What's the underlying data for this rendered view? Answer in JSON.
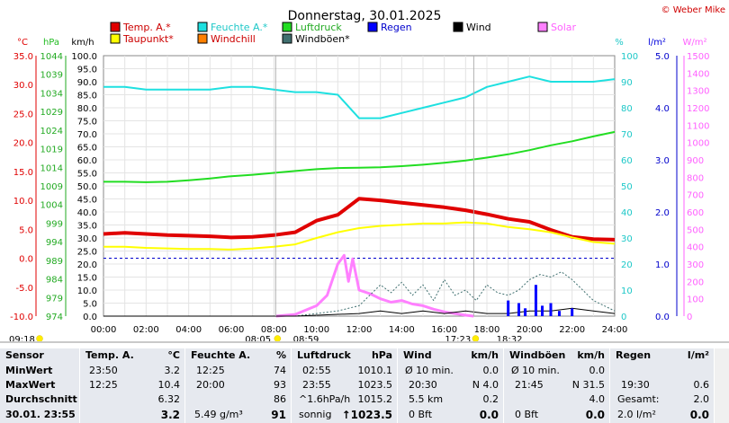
{
  "header": {
    "title": "Donnerstag, 30.01.2025",
    "copyright": "© Weber Mike"
  },
  "units": {
    "celsius": "°C",
    "hpa": "hPa",
    "kmh": "km/h",
    "percent": "%",
    "lm2": "l/m²",
    "wm2": "W/m²"
  },
  "legend": [
    {
      "label": "Temp. A.*",
      "color": "#e00000"
    },
    {
      "label": "Feuchte A.*",
      "color": "#1ee0e0"
    },
    {
      "label": "Luftdruck",
      "color": "#22dd22"
    },
    {
      "label": "Regen",
      "color": "#0000ff"
    },
    {
      "label": "Wind",
      "color": "#000000"
    },
    {
      "label": "Solar",
      "color": "#ff80ff"
    },
    {
      "label": "Taupunkt*",
      "color": "#ffff00"
    },
    {
      "label": "Windchill",
      "color": "#ff8000"
    },
    {
      "label": "Windböen*",
      "color": "#407070"
    }
  ],
  "chart_data": {
    "type": "line",
    "x_label_ticks": [
      "00:00",
      "02:00",
      "04:00",
      "06:00",
      "08:00",
      "10:00",
      "12:00",
      "14:00",
      "16:00",
      "18:00",
      "20:00",
      "22:00",
      "24:00"
    ],
    "axes": {
      "temp_c": {
        "ticks": [
          "35.0",
          "30.0",
          "25.0",
          "20.0",
          "15.0",
          "10.0",
          "5.0",
          "0.0",
          "-5.0",
          "-10.0"
        ],
        "range": [
          -10,
          35
        ]
      },
      "pressure_hpa": {
        "ticks": [
          "1044",
          "1039",
          "1034",
          "1029",
          "1024",
          "1019",
          "1014",
          "1009",
          "1004",
          "999",
          "994",
          "989",
          "984",
          "979",
          "974"
        ],
        "range": [
          974,
          1044
        ]
      },
      "wind_kmh": {
        "ticks": [
          "100.0",
          "95.0",
          "90.0",
          "85.0",
          "80.0",
          "75.0",
          "70.0",
          "65.0",
          "60.0",
          "55.0",
          "50.0",
          "45.0",
          "40.0",
          "35.0",
          "30.0",
          "25.0",
          "20.0",
          "15.0",
          "10.0",
          "5.0",
          "0.0"
        ],
        "range": [
          0,
          100
        ]
      },
      "humidity_pct": {
        "ticks": [
          "100",
          "90",
          "80",
          "70",
          "60",
          "50",
          "40",
          "30",
          "20",
          "10",
          "0"
        ],
        "range": [
          0,
          100
        ]
      },
      "rain_lm2": {
        "ticks": [
          "5.0",
          "4.0",
          "3.0",
          "2.0",
          "1.0",
          "0.0"
        ],
        "range": [
          0,
          5
        ]
      },
      "solar_wm2": {
        "ticks": [
          "1500",
          "1400",
          "1300",
          "1200",
          "1100",
          "1000",
          "900",
          "800",
          "700",
          "600",
          "500",
          "400",
          "300",
          "200",
          "100",
          "0"
        ],
        "range": [
          0,
          1500
        ]
      }
    },
    "series": [
      {
        "name": "Temp. A.*",
        "color": "#e00000",
        "x": [
          0,
          1,
          2,
          3,
          4,
          5,
          6,
          7,
          8,
          9,
          10,
          11,
          12,
          13,
          14,
          15,
          16,
          17,
          18,
          19,
          20,
          21,
          22,
          23,
          24
        ],
        "y": [
          4.2,
          4.4,
          4.2,
          4.0,
          3.9,
          3.8,
          3.6,
          3.7,
          4.0,
          4.5,
          6.5,
          7.5,
          10.3,
          10.0,
          9.6,
          9.2,
          8.8,
          8.3,
          7.6,
          6.8,
          6.3,
          4.9,
          3.7,
          3.3,
          3.2
        ]
      },
      {
        "name": "Taupunkt*",
        "color": "#ffff00",
        "x": [
          0,
          1,
          2,
          3,
          4,
          5,
          6,
          7,
          8,
          9,
          10,
          11,
          12,
          13,
          14,
          15,
          16,
          17,
          18,
          19,
          20,
          21,
          22,
          23,
          24
        ],
        "y": [
          2.0,
          2.0,
          1.8,
          1.7,
          1.6,
          1.6,
          1.5,
          1.7,
          2.0,
          2.4,
          3.5,
          4.5,
          5.2,
          5.6,
          5.8,
          6.0,
          6.0,
          6.2,
          6.0,
          5.4,
          5.0,
          4.5,
          3.6,
          2.8,
          2.5
        ]
      },
      {
        "name": "Feuchte A.*",
        "color": "#1ee0e0",
        "x": [
          0,
          1,
          2,
          3,
          4,
          5,
          6,
          7,
          8,
          9,
          10,
          11,
          12,
          13,
          14,
          15,
          16,
          17,
          18,
          19,
          20,
          21,
          22,
          23,
          24
        ],
        "y": [
          88,
          88,
          87,
          87,
          87,
          87,
          88,
          88,
          87,
          86,
          86,
          85,
          76,
          76,
          78,
          80,
          82,
          84,
          88,
          90,
          92,
          90,
          90,
          90,
          91
        ]
      },
      {
        "name": "Luftdruck",
        "color": "#22dd22",
        "x": [
          0,
          1,
          2,
          3,
          4,
          5,
          6,
          7,
          8,
          9,
          10,
          11,
          12,
          13,
          14,
          15,
          16,
          17,
          18,
          19,
          20,
          21,
          22,
          23,
          24
        ],
        "y": [
          1010.1,
          1010.1,
          1010.0,
          1010.1,
          1010.5,
          1011.0,
          1011.6,
          1012.0,
          1012.5,
          1013.0,
          1013.5,
          1013.8,
          1013.9,
          1014.0,
          1014.3,
          1014.7,
          1015.2,
          1015.8,
          1016.6,
          1017.5,
          1018.6,
          1019.9,
          1021.0,
          1022.3,
          1023.5
        ]
      },
      {
        "name": "Solar",
        "color": "#ff80ff",
        "x": [
          8.1,
          9,
          10,
          10.5,
          11,
          11.3,
          11.5,
          11.7,
          12,
          12.5,
          13,
          13.5,
          14,
          14.5,
          15,
          15.5,
          16,
          16.5,
          17,
          17.38
        ],
        "y": [
          0,
          10,
          60,
          120,
          300,
          350,
          200,
          330,
          150,
          130,
          100,
          80,
          90,
          70,
          60,
          40,
          25,
          15,
          5,
          0
        ]
      },
      {
        "name": "Windböen*",
        "color": "#407070",
        "x": [
          0,
          9,
          10,
          11,
          12,
          12.5,
          13,
          13.5,
          14,
          14.5,
          15,
          15.5,
          16,
          16.5,
          17,
          17.5,
          18,
          18.5,
          19,
          19.5,
          20,
          20.5,
          21,
          21.5,
          22,
          22.5,
          23,
          24
        ],
        "y": [
          0,
          0,
          1,
          2,
          4,
          8,
          12,
          9,
          13,
          8,
          12,
          6,
          14,
          8,
          10,
          6,
          12,
          9,
          8,
          10,
          14,
          16,
          15,
          17,
          14,
          10,
          6,
          2
        ]
      },
      {
        "name": "Wind",
        "color": "#000000",
        "x": [
          0,
          9,
          12,
          13,
          14,
          15,
          16,
          17,
          18,
          19,
          20,
          21,
          22,
          23,
          24
        ],
        "y": [
          0,
          0,
          1,
          2,
          1,
          2,
          1,
          2,
          1,
          1,
          2,
          2,
          3,
          2,
          1
        ]
      },
      {
        "name": "Regen",
        "color": "#0000ff",
        "x": [
          19,
          19.5,
          19.8,
          20.3,
          20.6,
          21,
          21.4,
          22
        ],
        "y": [
          0.3,
          0.25,
          0.15,
          0.6,
          0.2,
          0.25,
          0.1,
          0.15
        ]
      }
    ],
    "sun_events": {
      "sunrise": "08:05",
      "sunrise2": "08:59",
      "sunset": "17:23",
      "sunset2": "18:32",
      "left_marker": "09:18"
    }
  },
  "table": {
    "columns": [
      {
        "header": "Sensor",
        "unit": ""
      },
      {
        "header": "Temp. A.",
        "unit": "°C"
      },
      {
        "header": "Feuchte A.",
        "unit": "%"
      },
      {
        "header": "Luftdruck",
        "unit": "hPa"
      },
      {
        "header": "Wind",
        "unit": "km/h"
      },
      {
        "header": "Windböen",
        "unit": "km/h"
      },
      {
        "header": "Regen",
        "unit": "l/m²"
      }
    ],
    "rows": {
      "min": {
        "label": "MinWert",
        "temp_time": "23:50",
        "temp_val": "3.2",
        "hum_time": "12:25",
        "hum_val": "74",
        "pres_time": "02:55",
        "pres_val": "1010.1",
        "wind_label": "Ø 10 min.",
        "wind_val": "0.0",
        "gust_label": "Ø 10 min.",
        "gust_val": "0.0",
        "rain_label": "",
        "rain_val": ""
      },
      "max": {
        "label": "MaxWert",
        "temp_time": "12:25",
        "temp_val": "10.4",
        "hum_time": "20:00",
        "hum_val": "93",
        "pres_time": "23:55",
        "pres_val": "1023.5",
        "wind_label": "20:30",
        "wind_val": "N 4.0",
        "gust_label": "21:45",
        "gust_val": "N 31.5",
        "rain_label": "19:30",
        "rain_val": "0.6"
      },
      "avg": {
        "label": "Durchschnitt",
        "temp_val": "6.32",
        "hum_val": "86",
        "pres_label": "^1.6hPa/h",
        "pres_val": "1015.2",
        "wind_label": "5.5 km",
        "wind_val": "0.2",
        "gust_val": "4.0",
        "rain_label": "Gesamt:",
        "rain_val": "2.0"
      },
      "current": {
        "label": "30.01. 23:55",
        "temp_val": "3.2",
        "hum_label": "5.49 g/m³",
        "hum_val": "91",
        "pres_label": "sonnig",
        "pres_val": "↑1023.5",
        "wind_label": "0 Bft",
        "wind_val": "0.0",
        "gust_label": "0 Bft",
        "gust_val": "0.0",
        "rain_label": "2.0 l/m²",
        "rain_val": "0.0"
      }
    }
  }
}
